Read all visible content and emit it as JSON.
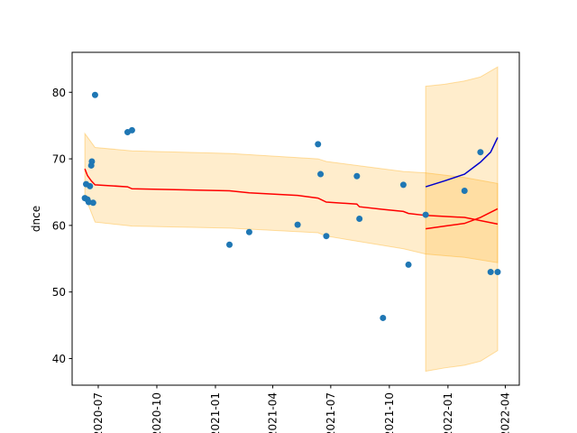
{
  "chart_data": {
    "type": "scatter",
    "title": "",
    "xlabel": "",
    "ylabel": "dnce",
    "xlim": [
      "2020-05-21",
      "2022-04-23"
    ],
    "ylim": [
      36,
      86
    ],
    "yticks": [
      40,
      50,
      60,
      70,
      80
    ],
    "xticks": [
      "2020-07-01",
      "2020-10-01",
      "2021-01-01",
      "2021-04-01",
      "2021-07-01",
      "2021-10-01",
      "2022-01-01",
      "2022-04-01"
    ],
    "xtick_labels": [
      "2020-07",
      "2020-10",
      "2021-01",
      "2021-04",
      "2021-07",
      "2021-10",
      "2022-01",
      "2022-04"
    ],
    "grid": false,
    "colors": {
      "points": "#1f77b4",
      "fit_line": "#ff0000",
      "forecast_line": "#0000cc",
      "band": "#ffa500"
    },
    "series": [
      {
        "kind": "points",
        "x": [
          "2020-06-10",
          "2020-06-12",
          "2020-06-14",
          "2020-06-16",
          "2020-06-18",
          "2020-06-20",
          "2020-06-21",
          "2020-06-23",
          "2020-06-26",
          "2020-08-16",
          "2020-08-23",
          "2021-01-23",
          "2021-02-23",
          "2021-05-10",
          "2021-06-11",
          "2021-06-15",
          "2021-06-24",
          "2021-08-11",
          "2021-08-15",
          "2021-09-21",
          "2021-10-23",
          "2021-10-31",
          "2021-11-27",
          "2022-01-27",
          "2022-02-21",
          "2022-03-09",
          "2022-03-20"
        ],
        "y": [
          64.1,
          66.2,
          63.9,
          63.5,
          65.9,
          69.0,
          69.6,
          63.4,
          79.6,
          74.0,
          74.3,
          57.1,
          59.0,
          60.1,
          72.2,
          67.7,
          58.4,
          67.4,
          61.0,
          46.1,
          66.1,
          54.1,
          61.6,
          65.2,
          71.0,
          53.0,
          53.0
        ]
      },
      {
        "kind": "line",
        "x": [
          "2020-06-10",
          "2020-06-14",
          "2020-06-20",
          "2020-06-26",
          "2020-08-16",
          "2020-08-23",
          "2021-01-23",
          "2021-02-23",
          "2021-05-10",
          "2021-06-11",
          "2021-06-24",
          "2021-08-11",
          "2021-08-15",
          "2021-09-21",
          "2021-10-23",
          "2021-10-31",
          "2021-11-27",
          "2022-01-27",
          "2022-03-20"
        ],
        "y": [
          68.5,
          67.5,
          66.7,
          66.1,
          65.8,
          65.5,
          65.2,
          64.9,
          64.5,
          64.1,
          63.5,
          63.2,
          62.8,
          62.4,
          62.1,
          61.8,
          61.5,
          61.2,
          60.2
        ]
      },
      {
        "kind": "line",
        "x": [
          "2021-11-27",
          "2021-12-27",
          "2022-01-27",
          "2022-02-21",
          "2022-03-20"
        ],
        "y": [
          59.5,
          59.9,
          60.3,
          61.2,
          62.5
        ]
      },
      {
        "kind": "line",
        "x": [
          "2021-11-27",
          "2021-12-27",
          "2022-01-27",
          "2022-02-21",
          "2022-03-09",
          "2022-03-20"
        ],
        "y": [
          65.8,
          66.7,
          67.7,
          69.5,
          71.0,
          73.2
        ]
      },
      {
        "kind": "band",
        "x": [
          "2020-06-10",
          "2020-06-26",
          "2020-08-23",
          "2021-01-23",
          "2021-06-11",
          "2021-06-24",
          "2021-10-23",
          "2021-11-27",
          "2022-01-27",
          "2022-03-20"
        ],
        "upper": [
          73.8,
          71.7,
          71.2,
          70.8,
          70.0,
          69.6,
          68.1,
          67.9,
          67.2,
          66.3
        ],
        "lower": [
          64.4,
          60.5,
          59.9,
          59.6,
          58.9,
          58.4,
          56.5,
          55.7,
          55.2,
          54.4
        ]
      },
      {
        "kind": "band",
        "x": [
          "2021-11-27",
          "2021-12-27",
          "2022-01-27",
          "2022-02-21",
          "2022-03-20"
        ],
        "upper": [
          80.9,
          81.2,
          81.7,
          82.3,
          83.8
        ],
        "lower": [
          38.1,
          38.6,
          39.0,
          39.6,
          41.2
        ]
      }
    ]
  }
}
